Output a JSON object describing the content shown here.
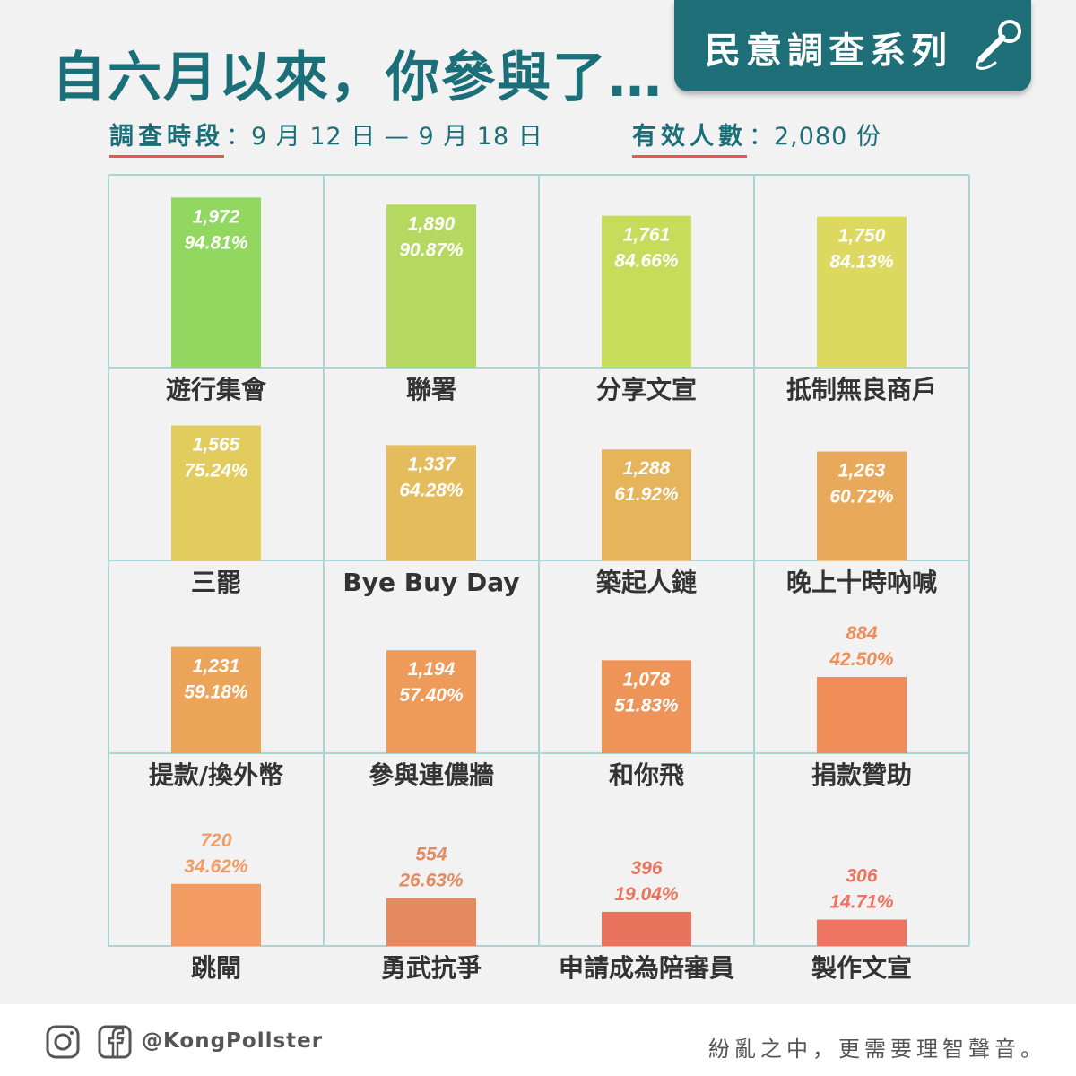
{
  "header": {
    "title": "自六月以來，你參與了…",
    "badge": "民意調查系列",
    "period_label": "調查時段",
    "period_value": "：9 月 12 日 — 9 月 18 日",
    "count_label": "有效人數",
    "count_value": "：2,080 份",
    "mic_icon": "microphone-icon"
  },
  "chart_data": {
    "type": "bar",
    "categories": [
      "遊行集會",
      "聯署",
      "分享文宣",
      "抵制無良商戶",
      "三罷",
      "Bye Buy Day",
      "築起人鏈",
      "晚上十時吶喊",
      "提款/換外幣",
      "參與連儂牆",
      "和你飛",
      "捐款贊助",
      "跳閘",
      "勇武抗爭",
      "申請成為陪審員",
      "製作文宣"
    ],
    "values": [
      1972,
      1890,
      1761,
      1750,
      1565,
      1337,
      1288,
      1263,
      1231,
      1194,
      1078,
      884,
      720,
      554,
      396,
      306
    ],
    "value_labels": [
      "1,972",
      "1,890",
      "1,761",
      "1,750",
      "1,565",
      "1,337",
      "1,288",
      "1,263",
      "1,231",
      "1,194",
      "1,078",
      "884",
      "720",
      "554",
      "396",
      "306"
    ],
    "percent_labels": [
      "94.81%",
      "90.87%",
      "84.66%",
      "84.13%",
      "75.24%",
      "64.28%",
      "61.92%",
      "60.72%",
      "59.18%",
      "57.40%",
      "51.83%",
      "42.50%",
      "34.62%",
      "26.63%",
      "19.04%",
      "14.71%"
    ],
    "ylim": [
      0,
      2080
    ],
    "colors": [
      "#92d860",
      "#b4d860",
      "#c8dc5c",
      "#dcd860",
      "#e2cc5e",
      "#e4bc5c",
      "#e6b45a",
      "#e8aa5a",
      "#eca458",
      "#ee9a58",
      "#ee9458",
      "#ef8c58",
      "#f29c64",
      "#e58a60",
      "#e9745e",
      "#ec7460"
    ],
    "layout": "4x4 grid panels",
    "grid": true
  },
  "footer": {
    "instagram_icon": "instagram-icon",
    "facebook_icon": "facebook-icon",
    "handle": "@KongPollster",
    "slogan": "紛亂之中，更需要理智聲音。"
  }
}
